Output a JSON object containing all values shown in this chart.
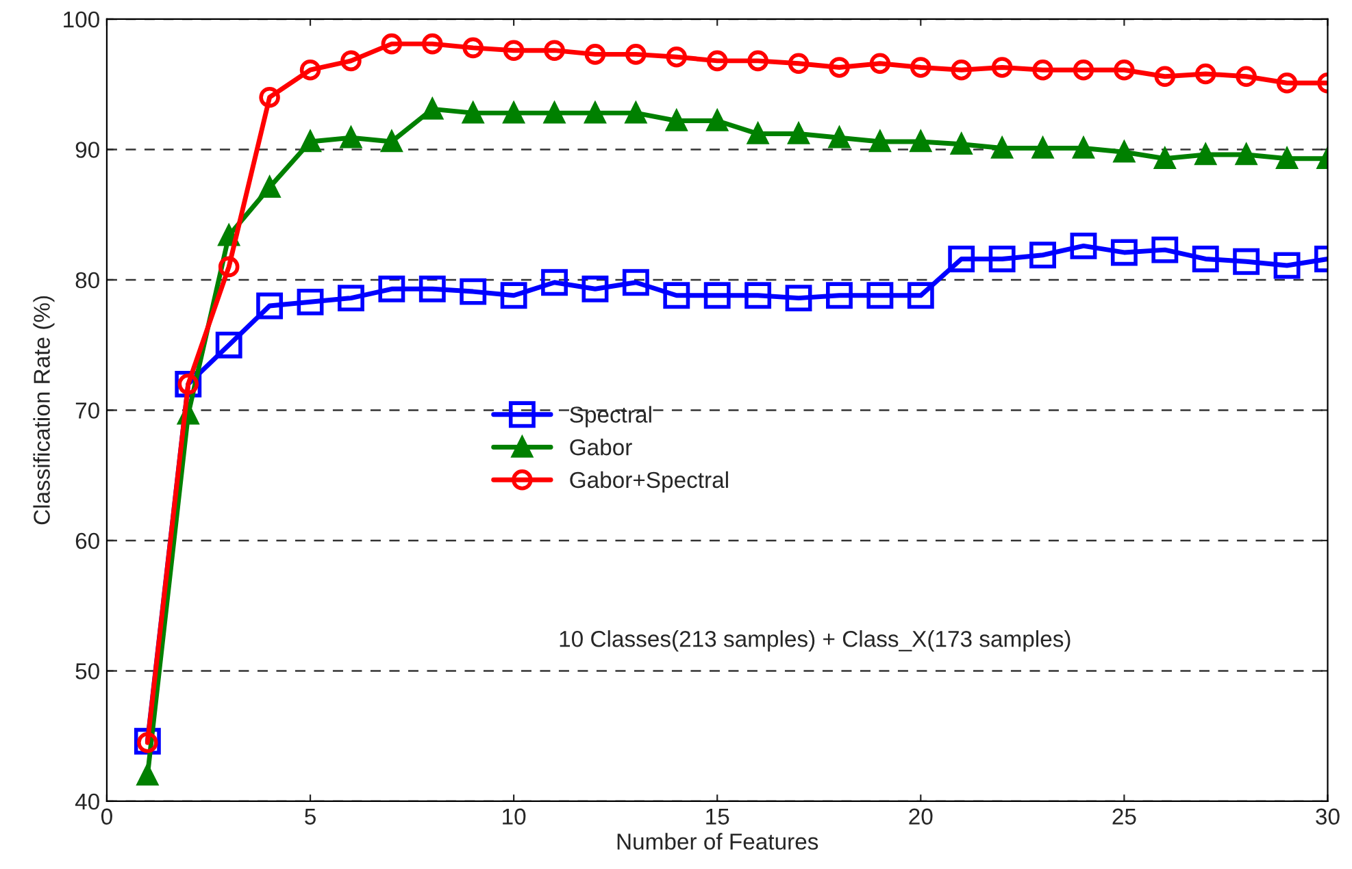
{
  "chart_data": {
    "type": "line",
    "xlabel": "Number of Features",
    "ylabel": "Classification Rate (%)",
    "x": [
      1,
      2,
      3,
      4,
      5,
      6,
      7,
      8,
      9,
      10,
      11,
      12,
      13,
      14,
      15,
      16,
      17,
      18,
      19,
      20,
      21,
      22,
      23,
      24,
      25,
      26,
      27,
      28,
      29,
      30
    ],
    "series": [
      {
        "name": "Spectral",
        "color": "#0000ff",
        "marker": "square",
        "values": [
          44.6,
          72,
          75,
          78,
          78.3,
          78.6,
          79.3,
          79.3,
          79.1,
          78.8,
          79.8,
          79.3,
          79.8,
          78.8,
          78.8,
          78.8,
          78.6,
          78.8,
          78.8,
          78.8,
          81.6,
          81.6,
          81.9,
          82.6,
          82.1,
          82.3,
          81.6,
          81.4,
          81.1,
          81.6
        ]
      },
      {
        "name": "Gabor",
        "color": "#008000",
        "marker": "triangle",
        "values": [
          42,
          69.7,
          83.4,
          87.1,
          90.6,
          90.9,
          90.6,
          93.1,
          92.8,
          92.8,
          92.8,
          92.8,
          92.8,
          92.2,
          92.2,
          91.2,
          91.2,
          90.9,
          90.6,
          90.6,
          90.4,
          90.1,
          90.1,
          90.1,
          89.8,
          89.3,
          89.6,
          89.6,
          89.3,
          89.3
        ]
      },
      {
        "name": "Gabor+Spectral",
        "color": "#ff0000",
        "marker": "circle",
        "values": [
          44.5,
          72,
          81,
          94,
          96.1,
          96.8,
          98.1,
          98.1,
          97.8,
          97.6,
          97.6,
          97.3,
          97.3,
          97.1,
          96.8,
          96.8,
          96.6,
          96.3,
          96.6,
          96.3,
          96.1,
          96.3,
          96.1,
          96.1,
          96.1,
          95.6,
          95.8,
          95.6,
          95.1,
          95.1
        ]
      }
    ],
    "annotations": [
      "10 Classes(213 samples) + Class_X(173 samples)"
    ],
    "xlim": [
      0,
      30
    ],
    "xticks": [
      0,
      5,
      10,
      15,
      20,
      25,
      30
    ],
    "ylim": [
      40,
      100
    ],
    "yticks": [
      40,
      50,
      60,
      70,
      80,
      90,
      100
    ],
    "grid": "y",
    "legend": "center",
    "line_style": "solid"
  }
}
